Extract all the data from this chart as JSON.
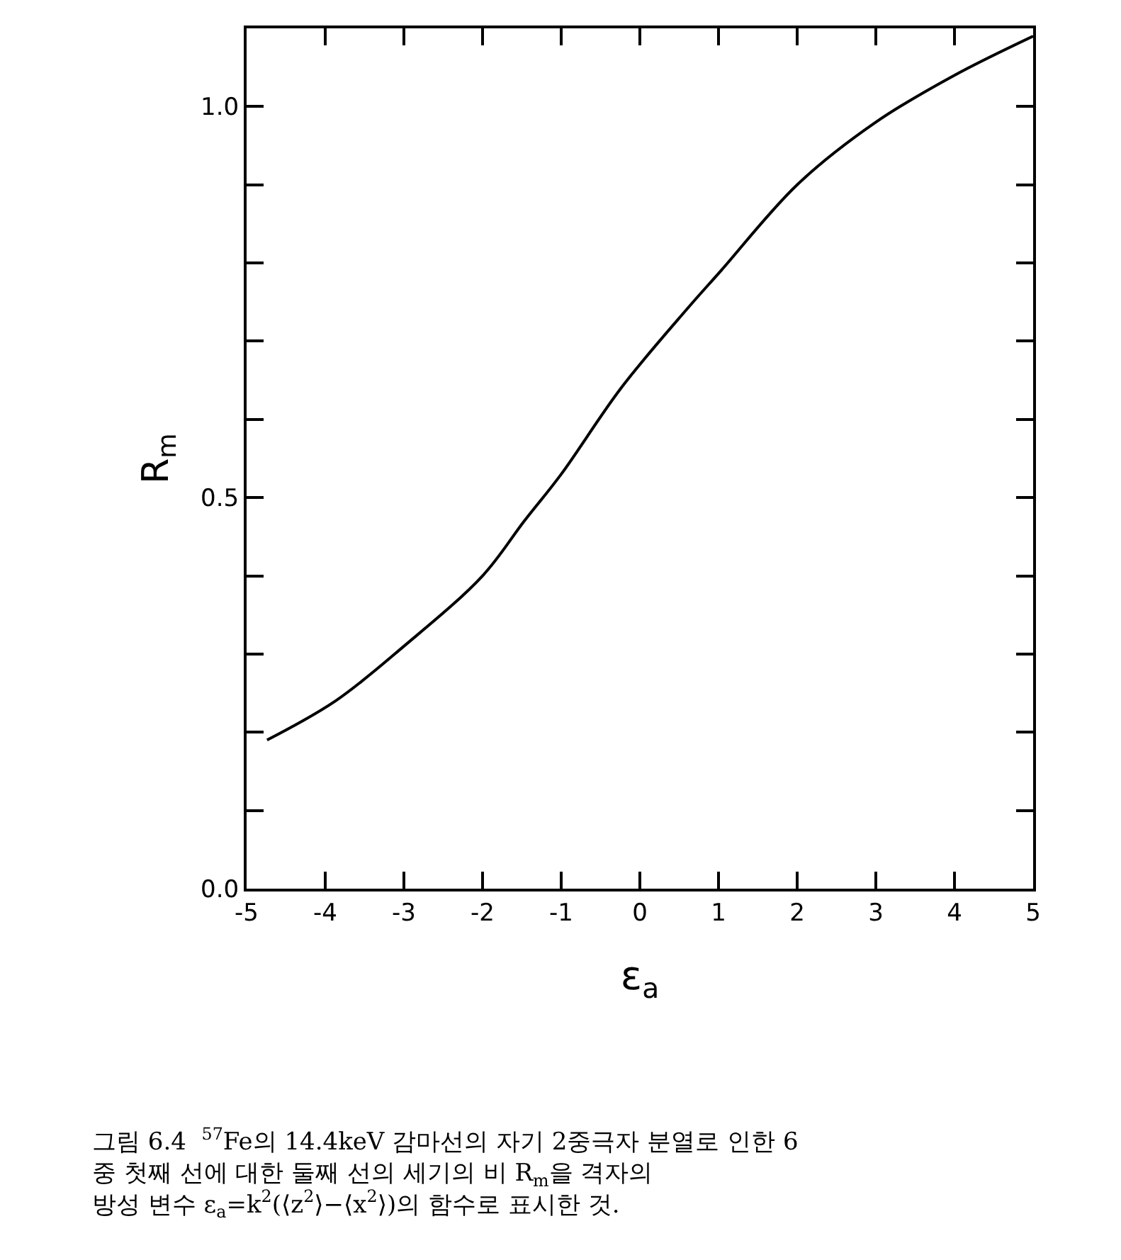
{
  "chart_data": {
    "type": "line",
    "xlabel": "ε$_{a}$",
    "ylabel": "R$_{m}$",
    "x": [
      -4.74,
      -3.87,
      -3,
      -2,
      -1.47,
      -1,
      -0.24,
      0.59,
      1.03,
      2,
      3,
      4,
      5
    ],
    "series": [
      {
        "color": "#000000",
        "values": [
          0.19,
          0.24,
          0.31,
          0.4,
          0.47,
          0.53,
          0.64,
          0.74,
          0.79,
          0.9,
          0.98,
          1.04,
          1.09
        ]
      }
    ],
    "xlim": [
      -5,
      5
    ],
    "xticks": [
      -5,
      -4,
      -3,
      -2,
      -1,
      0,
      1,
      2,
      3,
      4,
      5
    ],
    "ylim": [
      0,
      1.1
    ],
    "yticks": [
      {
        "value": 0,
        "label": "0.0"
      },
      {
        "value": 0.1,
        "label": null
      },
      {
        "value": 0.2,
        "label": null
      },
      {
        "value": 0.3,
        "label": null
      },
      {
        "value": 0.4,
        "label": null
      },
      {
        "value": 0.5,
        "label": "0.5"
      },
      {
        "value": 0.6,
        "label": null
      },
      {
        "value": 0.7,
        "label": null
      },
      {
        "value": 0.8,
        "label": null
      },
      {
        "value": 0.9,
        "label": null
      },
      {
        "value": 1.0,
        "label": "1.0"
      },
      {
        "value": 1.1,
        "label": null
      }
    ],
    "marker": "none",
    "line_style": "solid",
    "annotations": [
      "그림 6.4  $^{57}$Fe의 14.4keV 감마선의 자기 2중극자 분열로 인한 6\n중 첫째 선에 대한 둘째 선의 세기의 비 R$_{m}$을 격자의\n방성 변수 ε$_{a}$=k$^{2}$(⟨z$^{2}$⟩−⟨x$^{2}$⟩)의 함수로 표시한 것."
    ]
  }
}
